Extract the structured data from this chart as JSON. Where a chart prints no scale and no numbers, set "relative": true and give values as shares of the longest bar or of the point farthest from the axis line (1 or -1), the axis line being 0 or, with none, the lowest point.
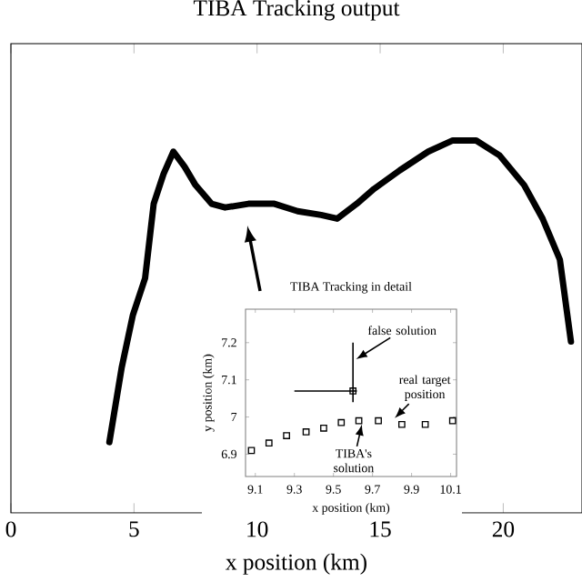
{
  "chart_data": [
    {
      "type": "line",
      "title": "TIBA Tracking output",
      "xlabel": "x position (km)",
      "relative": true,
      "color": "#000000",
      "xlim": [
        0,
        23.2
      ],
      "xticks": [
        0,
        5,
        10,
        15,
        20
      ],
      "x": [
        4.0,
        4.5,
        4.95,
        5.45,
        5.8,
        6.2,
        6.6,
        7.05,
        7.5,
        8.15,
        8.7,
        9.65,
        10.7,
        11.65,
        12.6,
        13.25,
        14.05,
        14.75,
        15.8,
        16.95,
        17.95,
        18.9,
        19.85,
        20.85,
        21.6,
        22.3,
        22.75
      ],
      "values": [
        0.19,
        0.39,
        0.53,
        0.63,
        0.83,
        0.91,
        0.97,
        0.93,
        0.88,
        0.83,
        0.82,
        0.83,
        0.83,
        0.81,
        0.8,
        0.79,
        0.83,
        0.87,
        0.92,
        0.97,
        1,
        1,
        0.96,
        0.88,
        0.79,
        0.68,
        0.46
      ]
    },
    {
      "type": "scatter",
      "title": "TIBA Tracking in detail",
      "xlabel": "x position (km)",
      "ylabel": "y position (km)",
      "marker": "square",
      "xlim": [
        9.05,
        10.13
      ],
      "ylim": [
        6.84,
        7.29
      ],
      "xticks": [
        9.1,
        9.3,
        9.5,
        9.7,
        9.9,
        10.1
      ],
      "yticks": [
        6.9,
        7,
        7.1,
        7.2
      ],
      "series": [
        {
          "color": "#000000",
          "x": [
            9.08,
            9.17,
            9.26,
            9.36,
            9.45,
            9.54,
            9.63,
            9.73,
            9.85,
            9.97,
            10.11
          ],
          "values": [
            6.91,
            6.93,
            6.95,
            6.96,
            6.97,
            6.985,
            6.99,
            6.99,
            6.98,
            6.98,
            6.99
          ]
        },
        {
          "color": "#000000",
          "x": [
            9.6
          ],
          "values": [
            7.07
          ],
          "errors": [
            [
              7.04,
              7.2
            ]
          ],
          "xerrors": [
            [
              9.3,
              9.62
            ]
          ]
        }
      ],
      "annotations": [
        {
          "text": "false solution",
          "x": 9.6,
          "y": 7.15
        },
        {
          "text": "real target position",
          "x": 9.8,
          "y": 6.99
        },
        {
          "text": "TIBA's solution",
          "x": 9.65,
          "y": 6.99
        }
      ]
    }
  ]
}
